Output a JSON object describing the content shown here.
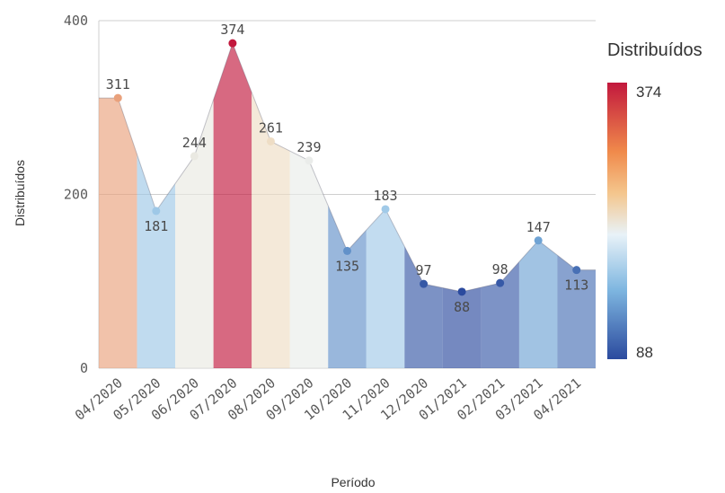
{
  "chart_data": {
    "type": "area",
    "xlabel": "Período",
    "ylabel": "Distribuídos",
    "categories": [
      "04/2020",
      "05/2020",
      "06/2020",
      "07/2020",
      "08/2020",
      "09/2020",
      "10/2020",
      "11/2020",
      "12/2020",
      "01/2021",
      "02/2021",
      "03/2021",
      "04/2021"
    ],
    "values": [
      311,
      181,
      244,
      374,
      261,
      239,
      135,
      183,
      97,
      88,
      98,
      147,
      113
    ],
    "y_ticks": [
      "0",
      "200",
      "400"
    ],
    "ylim": [
      0,
      400
    ],
    "grid": true,
    "legend": {
      "title": "Distribuídos",
      "max_label": "374",
      "min_label": "88",
      "placement": "right"
    },
    "colors": {
      "low": "#2b4a9e",
      "mid_low": "#7eb6e0",
      "mid": "#e8f2f8",
      "mid_high": "#f4c68d",
      "high": "#c2183d"
    }
  }
}
